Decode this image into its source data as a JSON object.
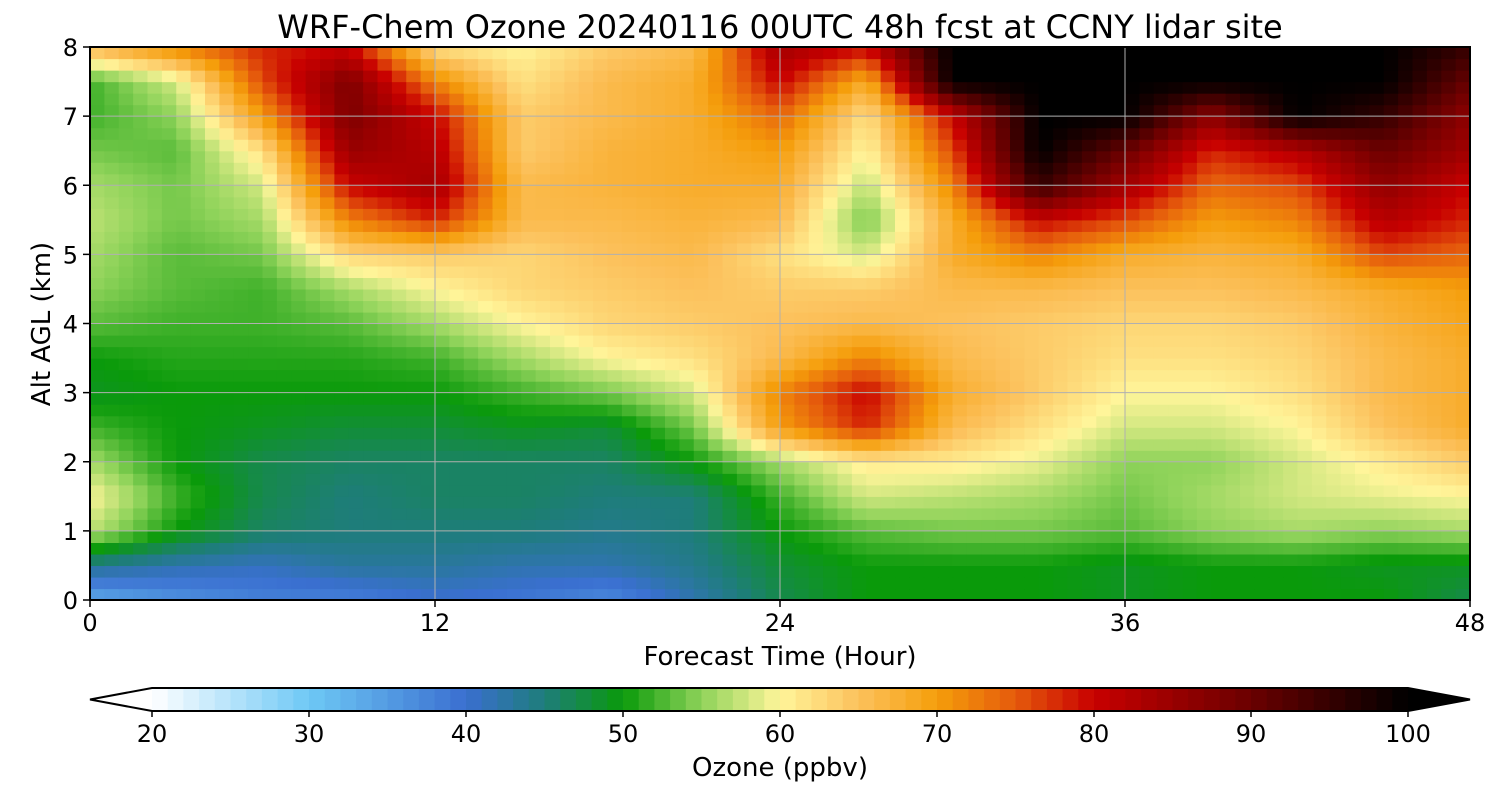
{
  "chart_data": {
    "type": "heatmap",
    "title": "WRF-Chem Ozone  20240116 00UTC 48h fcst at CCNY lidar site",
    "xlabel": "Forecast Time (Hour)",
    "ylabel": "Alt AGL (km)",
    "xlim": [
      0,
      48
    ],
    "ylim": [
      0,
      8
    ],
    "x_ticks": [
      0,
      12,
      24,
      36,
      48
    ],
    "y_ticks": [
      0,
      1,
      2,
      3,
      4,
      5,
      6,
      7,
      8
    ],
    "grid": true,
    "x": [
      0,
      3,
      6,
      9,
      12,
      15,
      18,
      21,
      24,
      27,
      30,
      33,
      36,
      39,
      42,
      45,
      48
    ],
    "y": [
      0,
      0.5,
      1,
      1.5,
      2,
      2.5,
      3,
      3.5,
      4,
      4.5,
      5,
      5.5,
      6,
      6.5,
      7,
      7.5,
      8
    ],
    "z_rows_by_altitude": [
      [
        33,
        36,
        38,
        38,
        40,
        39,
        37,
        42,
        47,
        50,
        50,
        50,
        49,
        50,
        50,
        50,
        47
      ],
      [
        44,
        42,
        41,
        43,
        43,
        42,
        42,
        44,
        48,
        50,
        50,
        50,
        49,
        50,
        50,
        49,
        49
      ],
      [
        57,
        50,
        46,
        45,
        45,
        45,
        44,
        45,
        50,
        53,
        54,
        54,
        53,
        55,
        56,
        55,
        56
      ],
      [
        60,
        52,
        47,
        45,
        46,
        46,
        45,
        45,
        52,
        58,
        57,
        56,
        54,
        56,
        58,
        59,
        60
      ],
      [
        56,
        50,
        47,
        46,
        46,
        46,
        46,
        50,
        56,
        61,
        61,
        59,
        55,
        55,
        58,
        61,
        64
      ],
      [
        52,
        50,
        49,
        48,
        48,
        49,
        48,
        54,
        70,
        78,
        66,
        62,
        58,
        58,
        60,
        65,
        68
      ],
      [
        49,
        50,
        50,
        50,
        50,
        52,
        54,
        58,
        72,
        80,
        68,
        64,
        60,
        60,
        62,
        66,
        68
      ],
      [
        50,
        51,
        51,
        51,
        52,
        56,
        60,
        62,
        66,
        72,
        66,
        64,
        62,
        62,
        63,
        66,
        68
      ],
      [
        53,
        52,
        52,
        53,
        56,
        60,
        63,
        64,
        65,
        66,
        65,
        64,
        63,
        63,
        64,
        67,
        69
      ],
      [
        55,
        53,
        52,
        56,
        60,
        63,
        64,
        65,
        64,
        64,
        66,
        66,
        65,
        65,
        66,
        68,
        70
      ],
      [
        56,
        53,
        54,
        63,
        64,
        63,
        65,
        66,
        62,
        58,
        68,
        72,
        68,
        67,
        68,
        76,
        74
      ],
      [
        57,
        54,
        56,
        72,
        78,
        66,
        66,
        67,
        66,
        54,
        68,
        80,
        76,
        70,
        72,
        82,
        78
      ],
      [
        56,
        54,
        58,
        80,
        84,
        66,
        67,
        68,
        68,
        57,
        72,
        95,
        84,
        74,
        76,
        86,
        80
      ],
      [
        54,
        53,
        62,
        85,
        82,
        64,
        67,
        68,
        70,
        60,
        76,
        100,
        90,
        78,
        82,
        90,
        84
      ],
      [
        52,
        55,
        70,
        88,
        80,
        64,
        66,
        68,
        74,
        62,
        80,
        100,
        100,
        86,
        100,
        95,
        86
      ],
      [
        52,
        58,
        76,
        88,
        72,
        62,
        66,
        68,
        80,
        68,
        100,
        100,
        100,
        100,
        100,
        100,
        90
      ],
      [
        66,
        72,
        78,
        80,
        62,
        60,
        64,
        66,
        84,
        80,
        100,
        100,
        100,
        100,
        100,
        100,
        95
      ]
    ],
    "colorbar": {
      "label": "Ozone  (ppbv)",
      "min": 20,
      "max": 100,
      "ticks": [
        20,
        30,
        40,
        50,
        60,
        70,
        80,
        90,
        100
      ],
      "extend": "both",
      "stops": [
        {
          "v": 20,
          "c": "#ffffff"
        },
        {
          "v": 30,
          "c": "#6ec8f5"
        },
        {
          "v": 40,
          "c": "#3a6fd0"
        },
        {
          "v": 45,
          "c": "#1e7d7a"
        },
        {
          "v": 50,
          "c": "#0a9a0a"
        },
        {
          "v": 55,
          "c": "#8fd35a"
        },
        {
          "v": 60,
          "c": "#fff59a"
        },
        {
          "v": 65,
          "c": "#fcc15c"
        },
        {
          "v": 70,
          "c": "#f59e0b"
        },
        {
          "v": 75,
          "c": "#e55a0c"
        },
        {
          "v": 80,
          "c": "#c80000"
        },
        {
          "v": 90,
          "c": "#6a0000"
        },
        {
          "v": 100,
          "c": "#000000"
        }
      ]
    }
  }
}
